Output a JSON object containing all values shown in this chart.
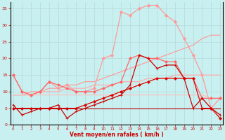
{
  "x": [
    0,
    1,
    2,
    3,
    4,
    5,
    6,
    7,
    8,
    9,
    10,
    11,
    12,
    13,
    14,
    15,
    16,
    17,
    18,
    19,
    20,
    21,
    22,
    23
  ],
  "bg_color": "#c8f0f0",
  "grid_color": "#b8d8d8",
  "xlabel": "Vent moyen/en rafales ( km/h )",
  "ylim": [
    0,
    37
  ],
  "yticks": [
    0,
    5,
    10,
    15,
    20,
    25,
    30,
    35
  ],
  "series": [
    {
      "y": [
        15,
        10,
        9,
        10,
        13,
        11,
        12,
        10,
        10,
        11,
        20,
        21,
        34,
        33,
        35,
        36,
        36,
        33,
        31,
        26,
        21,
        15,
        5,
        8
      ],
      "color": "#ff9999",
      "lw": 0.9,
      "marker": "D",
      "ms": 2.2
    },
    {
      "y": [
        9,
        9,
        10,
        10,
        11,
        11,
        12,
        12,
        13,
        13,
        14,
        15,
        16,
        17,
        18,
        19,
        20,
        21,
        22,
        23,
        24,
        26,
        27,
        27
      ],
      "color": "#ff9999",
      "lw": 0.85,
      "marker": null,
      "ms": 0
    },
    {
      "y": [
        9,
        9,
        9,
        10,
        10,
        10,
        11,
        11,
        11,
        12,
        12,
        12,
        13,
        13,
        13,
        14,
        14,
        14,
        15,
        15,
        15,
        15,
        15,
        15
      ],
      "color": "#ffaaaa",
      "lw": 0.85,
      "marker": null,
      "ms": 0
    },
    {
      "y": [
        9,
        9,
        9,
        9,
        9,
        9,
        9,
        9,
        9,
        9,
        9,
        9,
        9,
        9,
        9,
        9,
        9,
        9,
        9,
        9,
        9,
        9,
        8,
        8
      ],
      "color": "#ffbbbb",
      "lw": 0.8,
      "marker": null,
      "ms": 0
    },
    {
      "y": [
        15,
        10,
        9,
        10,
        13,
        12,
        11,
        10,
        10,
        10,
        11,
        12,
        13,
        20,
        21,
        20,
        20,
        19,
        19,
        14,
        14,
        8,
        8,
        8
      ],
      "color": "#ff6666",
      "lw": 0.9,
      "marker": "D",
      "ms": 2.0
    },
    {
      "y": [
        6,
        3,
        4,
        5,
        5,
        6,
        2,
        4,
        5,
        6,
        7,
        8,
        9,
        12,
        21,
        20,
        17,
        18,
        18,
        14,
        5,
        8,
        5,
        3
      ],
      "color": "#cc0000",
      "lw": 0.9,
      "marker": "+",
      "ms": 3.5
    },
    {
      "y": [
        5,
        5,
        5,
        5,
        5,
        5,
        5,
        5,
        6,
        7,
        8,
        9,
        10,
        11,
        12,
        13,
        14,
        14,
        14,
        14,
        14,
        5,
        5,
        2
      ],
      "color": "#dd0000",
      "lw": 0.9,
      "marker": "D",
      "ms": 2.0
    },
    {
      "y": [
        5,
        5,
        5,
        5,
        5,
        5,
        5,
        5,
        5,
        5,
        5,
        5,
        5,
        5,
        5,
        5,
        5,
        5,
        5,
        5,
        5,
        5,
        5,
        5
      ],
      "color": "#bb0000",
      "lw": 0.8,
      "marker": null,
      "ms": 0
    }
  ]
}
